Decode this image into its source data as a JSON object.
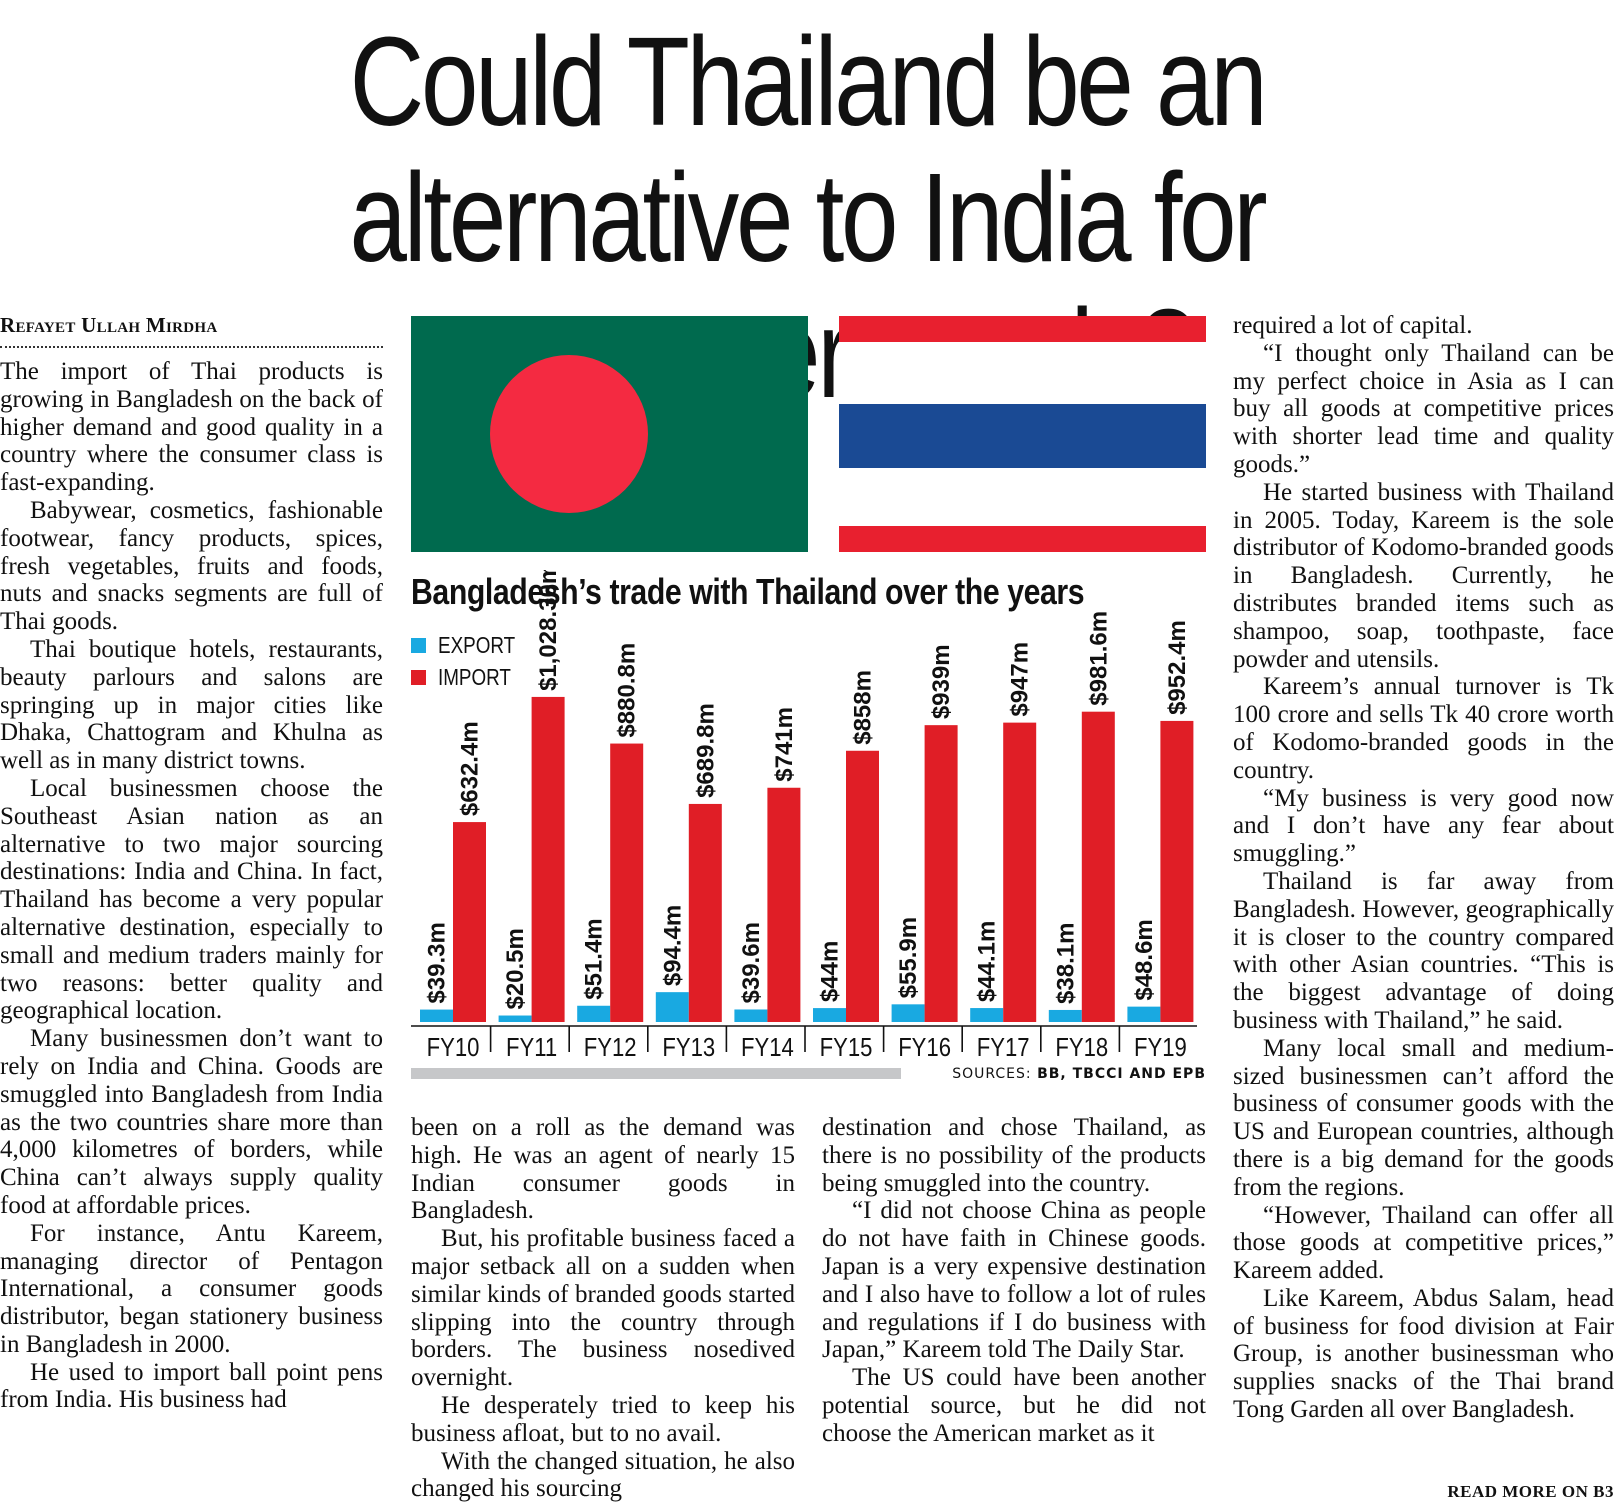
{
  "headline": "Could Thailand be an alternative to India for consumer goods?",
  "byline": "Refayet Ullah Mirdha",
  "columns": {
    "col1": [
      "The import of Thai products is growing in Bangladesh on the back of higher demand and good quality in a country where the consumer class is fast-expanding.",
      "Babywear, cosmetics, fashionable footwear, fancy products, spices, fresh vegetables, fruits and foods, nuts and snacks segments are full of Thai goods.",
      "Thai boutique hotels, restaurants, beauty parlours and salons are springing up in major cities like Dhaka, Chattogram and Khulna as well as in many district towns.",
      "Local businessmen choose the Southeast Asian nation as an alternative to two major sourcing destinations: India and China. In fact, Thailand has become a very popular alternative destination, especially to small and medium traders mainly for two reasons: better quality and geographical location.",
      "Many businessmen don’t want to rely on India and China. Goods are smuggled into Bangladesh from India as the two countries share more than 4,000 kilometres of borders, while China can’t always supply quality food at affordable prices.",
      "For instance, Antu Kareem, managing director of Pentagon International, a consumer goods distributor, began stationery business in Bangladesh in 2000.",
      "He used to import ball point pens from India. His business had"
    ],
    "col2": [
      "been on a roll as the demand was high. He was an agent of nearly 15 Indian consumer goods in Bangladesh.",
      "But, his profitable business faced a major setback all on a sudden when similar kinds of branded goods started slipping into the country through borders. The business nosedived overnight.",
      "He desperately tried to keep his business afloat, but to no avail.",
      "With the changed situation, he also changed his sourcing"
    ],
    "col3": [
      "destination and chose Thailand, as there is no possibility of the products being smuggled into the country.",
      "“I did not choose China as people do not have faith in Chinese goods. Japan is a very expensive destination and I also have to follow a lot of rules and regulations if I do business with Japan,” Kareem told The Daily Star.",
      "The US could have been another potential source, but he did not choose the American market as it"
    ],
    "col4": [
      "required a lot of capital.",
      "“I thought only Thailand can be my perfect choice in Asia as I can buy all goods at competitive prices with shorter lead time and quality goods.”",
      "He started business with Thailand in 2005. Today, Kareem is the sole distributor of Kodomo-branded goods in Bangladesh. Currently, he distributes branded items such as shampoo, soap, toothpaste, face powder and utensils.",
      "Kareem’s annual turnover is Tk 100 crore and sells Tk 40 crore worth of Kodomo-branded goods in the country.",
      "“My business is very good now and I don’t have any fear about smuggling.”",
      "Thailand is far away from Bangladesh. However, geographically it is closer to the country compared with other Asian countries. “This is the biggest advantage of doing business with Thailand,” he said.",
      "Many local small and medium-sized businessmen can’t afford the business of consumer goods with the US and European countries, although there is a big demand for the goods from the regions.",
      "“However, Thailand can offer all those goods at competitive prices,” Kareem added.",
      "Like Kareem, Abdus Salam, head of business for food division at Fair Group, is another businessman who supplies snacks of the Thai brand Tong Garden all over Bangladesh."
    ]
  },
  "read_more": "READ MORE ON B3",
  "flags": {
    "bangladesh": {
      "green": "#006a4e",
      "red": "#f42a41"
    },
    "thailand": {
      "red": "#e8202f",
      "white": "#ffffff",
      "blue": "#1a4a94"
    }
  },
  "chart_data": {
    "type": "bar",
    "title": "Bangladesh’s trade with Thailand over the years",
    "categories": [
      "FY10",
      "FY11",
      "FY12",
      "FY13",
      "FY14",
      "FY15",
      "FY16",
      "FY17",
      "FY18",
      "FY19"
    ],
    "series": [
      {
        "name": "EXPORT",
        "color": "#19a9e1",
        "values": [
          39.3,
          20.5,
          51.4,
          94.4,
          39.6,
          44,
          55.9,
          44.1,
          38.1,
          48.6
        ],
        "labels": [
          "$39.3m",
          "$20.5m",
          "$51.4m",
          "$94.4m",
          "$39.6m",
          "$44m",
          "$55.9m",
          "$44.1m",
          "$38.1m",
          "$48.6m"
        ]
      },
      {
        "name": "IMPORT",
        "color": "#e01e26",
        "values": [
          632.4,
          1028.3,
          880.8,
          689.8,
          741,
          858,
          939,
          947,
          981.6,
          952.4
        ],
        "labels": [
          "$632.4m",
          "$1,028.30m",
          "$880.8m",
          "$689.8m",
          "$741m",
          "$858m",
          "$939m",
          "$947m",
          "$981.6m",
          "$952.4m"
        ]
      }
    ],
    "ylim": [
      0,
      1240
    ],
    "legend": "top-left",
    "grid": false,
    "sources_label": "SOURCES:",
    "sources": "BB, TBCCI AND EPB"
  }
}
